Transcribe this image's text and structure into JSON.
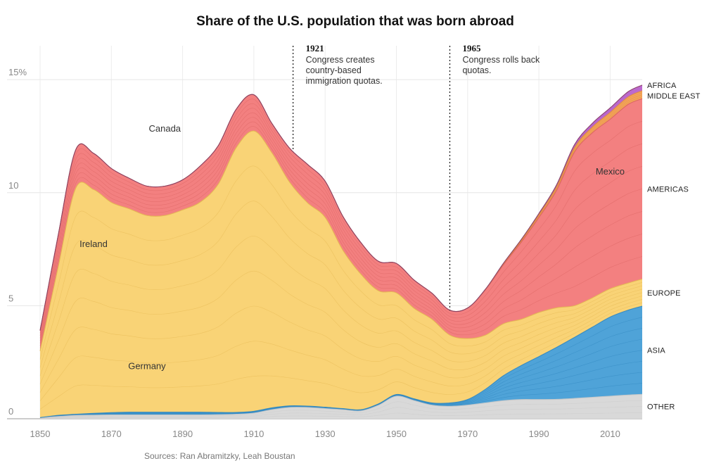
{
  "chart_data": {
    "type": "area",
    "title": "Share of the U.S. population that was born abroad",
    "source": "Sources: Ran Abramitzky, Leah Boustan",
    "xlim": [
      1850,
      2019
    ],
    "ylim": [
      0,
      16.5
    ],
    "x_ticks": [
      "1850",
      "1870",
      "1890",
      "1910",
      "1930",
      "1950",
      "1970",
      "1990",
      "2010"
    ],
    "y_ticks": [
      {
        "value": 0,
        "label": "0"
      },
      {
        "value": 5,
        "label": "5"
      },
      {
        "value": 10,
        "label": "10"
      },
      {
        "value": 15,
        "label": "15%"
      }
    ],
    "grid": true,
    "x": [
      1850,
      1855,
      1860,
      1865,
      1870,
      1875,
      1880,
      1885,
      1890,
      1895,
      1900,
      1905,
      1910,
      1915,
      1920,
      1925,
      1930,
      1935,
      1940,
      1945,
      1950,
      1955,
      1960,
      1965,
      1970,
      1975,
      1980,
      1985,
      1990,
      1995,
      2000,
      2005,
      2010,
      2015,
      2019
    ],
    "series": [
      {
        "name": "OTHER",
        "color": "#d9d9d9",
        "values": [
          0.05,
          0.1,
          0.15,
          0.16,
          0.17,
          0.17,
          0.17,
          0.17,
          0.17,
          0.17,
          0.18,
          0.2,
          0.25,
          0.4,
          0.5,
          0.5,
          0.45,
          0.4,
          0.35,
          0.6,
          1.0,
          0.8,
          0.6,
          0.55,
          0.6,
          0.7,
          0.8,
          0.85,
          0.85,
          0.86,
          0.9,
          0.95,
          1.0,
          1.05,
          1.08
        ]
      },
      {
        "name": "ASIA",
        "color": "#4fa3d8",
        "values": [
          0.0,
          0.05,
          0.05,
          0.08,
          0.1,
          0.12,
          0.12,
          0.12,
          0.12,
          0.12,
          0.1,
          0.08,
          0.08,
          0.08,
          0.07,
          0.06,
          0.06,
          0.05,
          0.05,
          0.06,
          0.07,
          0.08,
          0.1,
          0.15,
          0.25,
          0.6,
          1.1,
          1.5,
          1.9,
          2.3,
          2.7,
          3.1,
          3.5,
          3.75,
          3.9
        ]
      },
      {
        "name": "EUROPE",
        "color": "#f9d376",
        "values": [
          2.95,
          6.5,
          10.0,
          9.9,
          9.3,
          9.0,
          8.7,
          8.7,
          8.95,
          9.3,
          10.1,
          11.7,
          12.4,
          11.3,
          9.9,
          9.0,
          8.4,
          7.0,
          6.0,
          5.0,
          4.5,
          4.0,
          3.7,
          3.0,
          2.7,
          2.4,
          2.3,
          2.05,
          1.95,
          1.75,
          1.4,
          1.3,
          1.25,
          1.2,
          1.2
        ]
      },
      {
        "name": "AMERICAS",
        "color": "#f38080",
        "values": [
          0.9,
          1.4,
          1.7,
          1.6,
          1.5,
          1.35,
          1.3,
          1.3,
          1.33,
          1.6,
          1.7,
          1.7,
          1.6,
          1.3,
          1.5,
          1.7,
          1.6,
          1.5,
          1.4,
          1.3,
          1.3,
          1.25,
          1.15,
          1.1,
          1.35,
          2.0,
          2.6,
          3.4,
          4.2,
          5.2,
          6.8,
          7.3,
          7.5,
          7.9,
          7.98
        ]
      },
      {
        "name": "MIDDLE EAST",
        "color": "#f4a55a",
        "values": [
          0,
          0,
          0,
          0,
          0,
          0,
          0,
          0,
          0,
          0,
          0,
          0,
          0,
          0,
          0,
          0,
          0,
          0,
          0,
          0,
          0,
          0,
          0,
          0,
          0,
          0.02,
          0.05,
          0.08,
          0.12,
          0.16,
          0.2,
          0.25,
          0.3,
          0.33,
          0.35
        ]
      },
      {
        "name": "AFRICA",
        "color": "#c16fd3",
        "values": [
          0,
          0,
          0,
          0,
          0,
          0,
          0,
          0,
          0,
          0,
          0,
          0,
          0,
          0,
          0,
          0,
          0,
          0,
          0,
          0,
          0,
          0,
          0,
          0,
          0,
          0.01,
          0.02,
          0.04,
          0.06,
          0.09,
          0.13,
          0.17,
          0.2,
          0.23,
          0.25
        ]
      }
    ],
    "region_labels": [
      "AFRICA",
      "MIDDLE EAST",
      "AMERICAS",
      "EUROPE",
      "ASIA",
      "OTHER"
    ],
    "inline_labels": [
      {
        "text": "Canada",
        "x": 1885,
        "y": 12.7
      },
      {
        "text": "Mexico",
        "x": 2010,
        "y": 10.8
      },
      {
        "text": "Ireland",
        "x": 1865,
        "y": 7.6
      },
      {
        "text": "Germany",
        "x": 1880,
        "y": 2.2
      }
    ],
    "annotations": [
      {
        "x": 1921,
        "year": "1921",
        "lines": [
          "Congress creates",
          "country-based",
          "immigration quotas."
        ]
      },
      {
        "x": 1965,
        "year": "1965",
        "lines": [
          "Congress rolls back",
          "quotas."
        ]
      }
    ]
  }
}
